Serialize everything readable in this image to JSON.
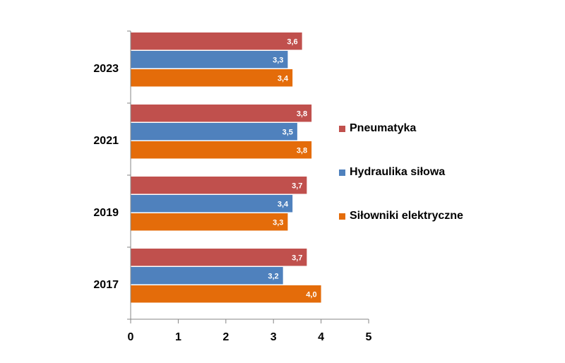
{
  "chart_data": {
    "type": "bar",
    "orientation": "horizontal",
    "categories": [
      "2023",
      "2021",
      "2019",
      "2017"
    ],
    "series": [
      {
        "name": "Pneumatyka",
        "color": "#C0504D",
        "values": [
          3.6,
          3.8,
          3.7,
          3.7
        ],
        "labels": [
          "3,6",
          "3,8",
          "3,7",
          "3,7"
        ]
      },
      {
        "name": "Hydraulika siłowa",
        "color": "#4F81BD",
        "values": [
          3.3,
          3.5,
          3.4,
          3.2
        ],
        "labels": [
          "3,3",
          "3,5",
          "3,4",
          "3,2"
        ]
      },
      {
        "name": "Siłowniki elektryczne",
        "color": "#E46C0A",
        "values": [
          3.4,
          3.8,
          3.3,
          4.0
        ],
        "labels": [
          "3,4",
          "3,8",
          "3,3",
          "4,0"
        ]
      }
    ],
    "xlim": [
      0,
      5
    ],
    "xticks": [
      "0",
      "1",
      "2",
      "3",
      "4",
      "5"
    ],
    "title": "",
    "xlabel": "",
    "ylabel": "",
    "grid": false,
    "legend_position": "right"
  }
}
